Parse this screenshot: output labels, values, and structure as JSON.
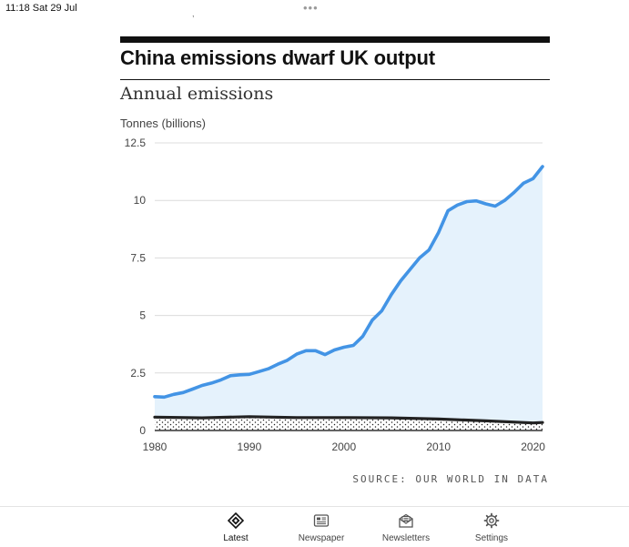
{
  "status_bar": {
    "time": "11:18  Sat 29 Jul",
    "menu_dots": "•••",
    "stray_mark": ","
  },
  "article": {
    "headline": "China emissions dwarf UK output",
    "subtitle": "Annual emissions",
    "source": "SOURCE: OUR WORLD IN DATA"
  },
  "chart_data": {
    "type": "area",
    "title": "Annual emissions",
    "ylabel": "Tonnes (billions)",
    "xlabel": "",
    "xlim": [
      1980,
      2021
    ],
    "ylim": [
      0,
      12.5
    ],
    "x_ticks": [
      1980,
      1990,
      2000,
      2010,
      2020
    ],
    "y_ticks": [
      0,
      2.5,
      5,
      7.5,
      10,
      12.5
    ],
    "y_tick_labels": [
      "0",
      "2.5",
      "5",
      "7.5",
      "10",
      "12.5"
    ],
    "grid": true,
    "series": [
      {
        "color": "#4394e5",
        "fill": "#e5f2fc",
        "x": [
          1980,
          1981,
          1982,
          1983,
          1984,
          1985,
          1986,
          1987,
          1988,
          1989,
          1990,
          1991,
          1992,
          1993,
          1994,
          1995,
          1996,
          1997,
          1998,
          1999,
          2000,
          2001,
          2002,
          2003,
          2004,
          2005,
          2006,
          2007,
          2008,
          2009,
          2010,
          2011,
          2012,
          2013,
          2014,
          2015,
          2016,
          2017,
          2018,
          2019,
          2020,
          2021
        ],
        "values": [
          1.47,
          1.45,
          1.57,
          1.65,
          1.8,
          1.96,
          2.06,
          2.2,
          2.38,
          2.42,
          2.44,
          2.56,
          2.68,
          2.88,
          3.05,
          3.32,
          3.47,
          3.47,
          3.3,
          3.5,
          3.62,
          3.7,
          4.1,
          4.8,
          5.2,
          5.9,
          6.5,
          7.0,
          7.5,
          7.85,
          8.6,
          9.55,
          9.8,
          9.95,
          9.98,
          9.85,
          9.75,
          10.0,
          10.35,
          10.75,
          10.95,
          11.47
        ]
      },
      {
        "color": "#222222",
        "fill": "dots",
        "x": [
          1980,
          1985,
          1990,
          1995,
          2000,
          2005,
          2008,
          2010,
          2015,
          2020,
          2021
        ],
        "values": [
          0.58,
          0.55,
          0.6,
          0.56,
          0.56,
          0.55,
          0.52,
          0.5,
          0.42,
          0.33,
          0.35
        ]
      }
    ]
  },
  "tab_bar": {
    "items": [
      {
        "label": "Latest",
        "icon": "diamond-logo-icon",
        "active": true
      },
      {
        "label": "Newspaper",
        "icon": "newspaper-icon",
        "active": false
      },
      {
        "label": "Newsletters",
        "icon": "newsletter-envelope-icon",
        "active": false
      },
      {
        "label": "Settings",
        "icon": "gear-icon",
        "active": false
      }
    ]
  }
}
